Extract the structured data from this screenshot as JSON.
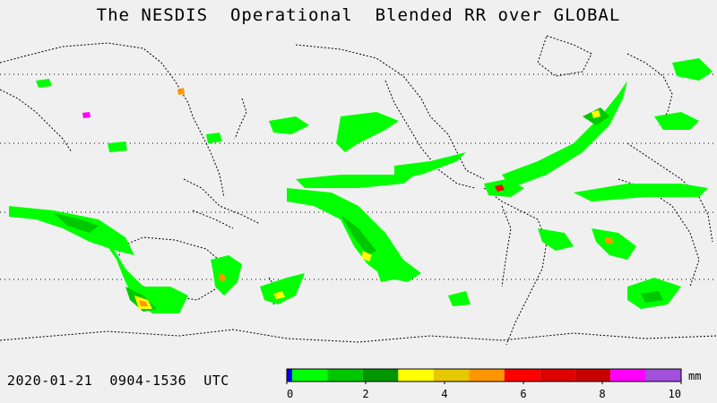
{
  "title": "The NESDIS  Operational  Blended RR over GLOBAL",
  "timestamp": "2020-01-21  0904-1536  UTC",
  "legend": {
    "unit": "mm",
    "min": 0,
    "max": 10,
    "ticks": [
      "0",
      "2",
      "4",
      "6",
      "8",
      "10"
    ],
    "colors": [
      "#0000ff",
      "#00ff00",
      "#00c800",
      "#009600",
      "#ffff00",
      "#e6c800",
      "#ff9600",
      "#ff0000",
      "#e10000",
      "#c80000",
      "#ff00ff",
      "#a050dc"
    ]
  },
  "map": {
    "background": "#f0f0f0",
    "coastline_color": "#000000",
    "gridline_color": "#000000"
  }
}
